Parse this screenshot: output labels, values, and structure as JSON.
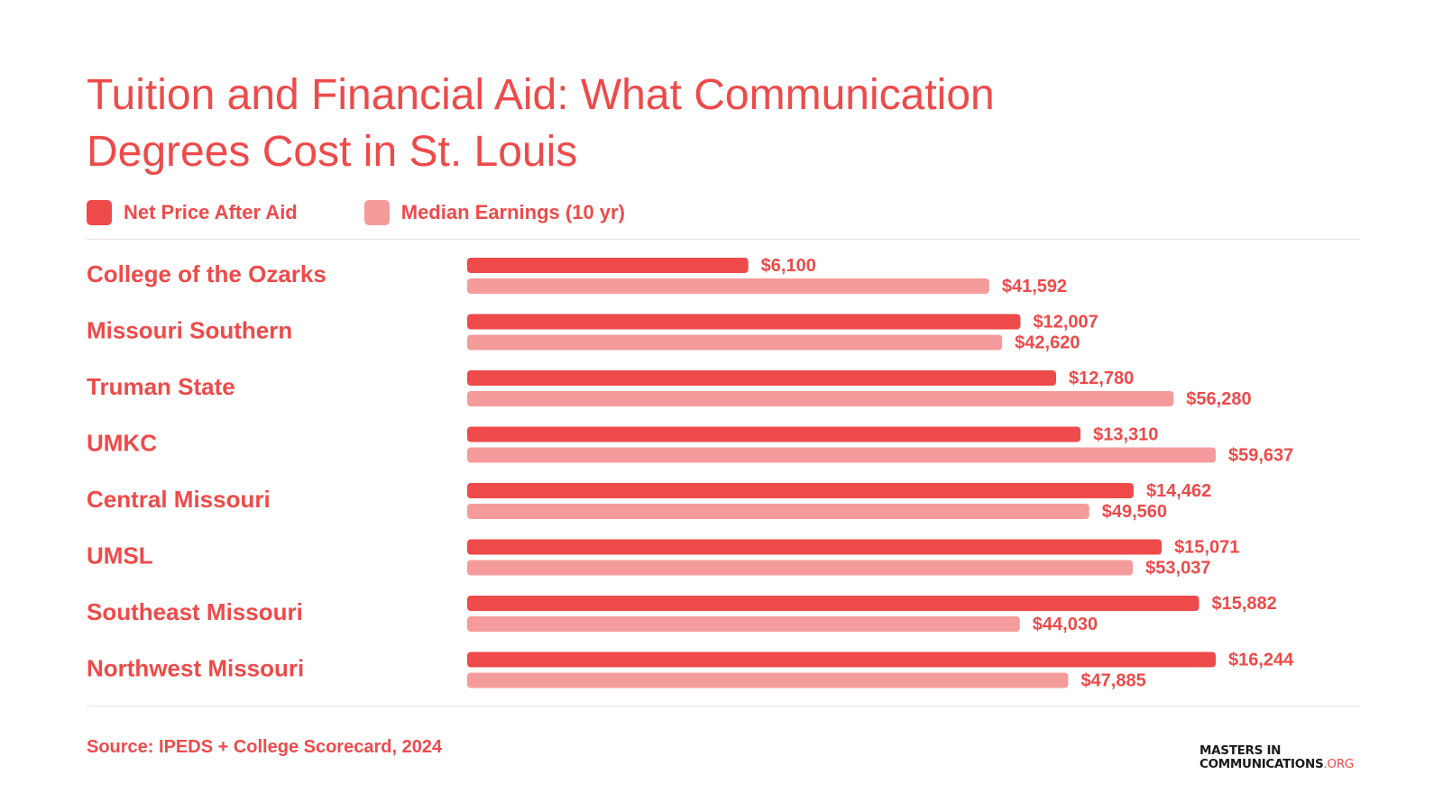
{
  "title": {
    "line1": "Tuition and Financial Aid: What Communication",
    "line2": "Degrees Cost in St. Louis"
  },
  "legend": [
    {
      "label": "Net Price After Aid",
      "color": "#ee4a4a"
    },
    {
      "label": "Median Earnings (10 yr)",
      "color": "#f59b9b"
    }
  ],
  "source": "Source: IPEDS + College Scorecard, 2024",
  "logo": {
    "line1": "MASTERS IN",
    "line2": "COMMUNICATIONS",
    "suffix": ".ORG"
  },
  "chart_data": {
    "type": "bar",
    "orientation": "horizontal",
    "categories": [
      "College of the Ozarks",
      "Missouri Southern",
      "Truman State",
      "UMKC",
      "Central Missouri",
      "UMSL",
      "Southeast Missouri",
      "Northwest Missouri"
    ],
    "series": [
      {
        "name": "Net Price After Aid",
        "color": "#ee4a4a",
        "values": [
          6100,
          12007,
          12780,
          13310,
          14462,
          15071,
          15882,
          16244
        ],
        "labels": [
          "$6,100",
          "$12,007",
          "$12,780",
          "$13,310",
          "$14,462",
          "$15,071",
          "$15,882",
          "$16,244"
        ]
      },
      {
        "name": "Median Earnings (10 yr)",
        "color": "#f59b9b",
        "values": [
          41592,
          42620,
          56280,
          59637,
          49560,
          53037,
          44030,
          47885
        ],
        "labels": [
          "$41,592",
          "$42,620",
          "$56,280",
          "$59,637",
          "$49,560",
          "$53,037",
          "$44,030",
          "$47,885"
        ]
      }
    ],
    "scale_note": "each series scaled independently to its own maximum",
    "grid": false,
    "legend_position": "top-left"
  }
}
